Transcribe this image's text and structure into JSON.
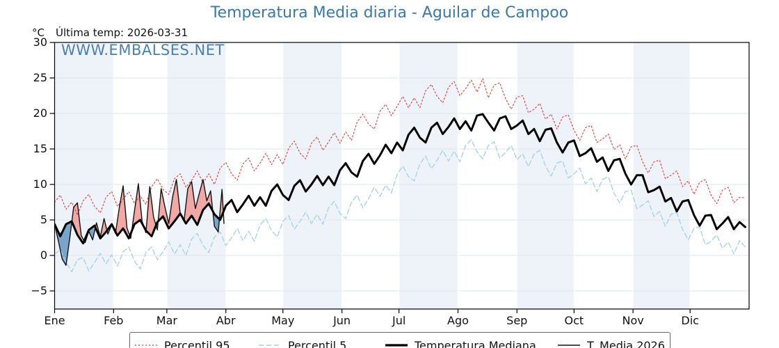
{
  "title": "Temperatura Media diaria - Aguilar de Campoo",
  "last_temp_label": "Última temp: 2026-03-31",
  "y_axis_unit": "°C",
  "watermark": "WWW.EMBALSES.NET",
  "colors": {
    "title_blue": "#3878ab",
    "band_blue": "#eef3f9",
    "hgrid": "#dfe5eb",
    "vgrid": "#ffffff",
    "axis": "#000000",
    "fill_above": "#f1a9a5",
    "fill_below": "#79a5cb"
  },
  "legend": {
    "items": [
      {
        "label": "Percentil 95",
        "series": 0
      },
      {
        "label": "Percentil 5",
        "series": 1
      },
      {
        "label": "Temperatura Mediana",
        "series": 2
      },
      {
        "label": "T. Media 2026",
        "series": 3
      }
    ],
    "item_offsets": [
      6,
      184,
      366,
      614
    ]
  },
  "chart_data": {
    "type": "line",
    "title": "Temperatura Media diaria - Aguilar de Campoo",
    "x_unit": "day_of_year",
    "x_range": [
      0,
      365
    ],
    "ylim": [
      -7.55,
      30
    ],
    "yticks": [
      30,
      25,
      20,
      15,
      10,
      5,
      0,
      -5
    ],
    "grid": true,
    "months": [
      {
        "label": "Ene",
        "day": 0
      },
      {
        "label": "Feb",
        "day": 31
      },
      {
        "label": "Mar",
        "day": 59
      },
      {
        "label": "Abr",
        "day": 90
      },
      {
        "label": "May",
        "day": 120
      },
      {
        "label": "Jun",
        "day": 151
      },
      {
        "label": "Jul",
        "day": 181
      },
      {
        "label": "Ago",
        "day": 212
      },
      {
        "label": "Sep",
        "day": 243
      },
      {
        "label": "Oct",
        "day": 273
      },
      {
        "label": "Nov",
        "day": 304
      },
      {
        "label": "Dic",
        "day": 334
      }
    ],
    "shaded_month_indices": [
      0,
      2,
      4,
      6,
      8,
      10
    ],
    "fills": {
      "between": [
        "T. Media 2026",
        "Temperatura Mediana"
      ],
      "above_color": "#f1a9a5",
      "below_color": "#79a5cb"
    },
    "series": [
      {
        "name": "Percentil 95",
        "color": "#e53935",
        "style": "dotted",
        "width": 1.1,
        "x_start": 0,
        "x_step": 3,
        "y": [
          7.5,
          8.5,
          6.5,
          7.5,
          5.7,
          7.7,
          8.6,
          6.9,
          6.0,
          8.2,
          9.0,
          6.9,
          7.9,
          9.0,
          7.3,
          8.4,
          7.2,
          9.7,
          10.8,
          9.3,
          8.6,
          10.8,
          11.5,
          9.6,
          10.6,
          11.9,
          10.2,
          11.5,
          10.0,
          12.3,
          13.1,
          11.5,
          10.6,
          12.9,
          13.7,
          11.9,
          13.0,
          14.4,
          12.8,
          14.2,
          12.8,
          15.1,
          16.1,
          14.4,
          13.6,
          15.8,
          16.7,
          14.8,
          16.0,
          17.3,
          15.8,
          17.4,
          16.2,
          18.8,
          19.9,
          18.5,
          17.8,
          20.3,
          21.3,
          19.7,
          21.0,
          22.4,
          20.8,
          22.2,
          20.8,
          23.2,
          24.1,
          22.4,
          21.5,
          23.7,
          24.5,
          22.5,
          23.5,
          24.7,
          23.0,
          24.9,
          22.2,
          24.0,
          24.3,
          22.1,
          20.6,
          22.3,
          22.5,
          20.1,
          20.6,
          21.4,
          19.2,
          19.9,
          17.8,
          19.5,
          19.8,
          17.6,
          16.2,
          18.0,
          18.3,
          15.9,
          16.4,
          17.1,
          14.9,
          15.6,
          13.6,
          15.3,
          15.5,
          13.2,
          11.6,
          13.2,
          13.4,
          10.8,
          11.3,
          11.9,
          9.7,
          10.5,
          8.6,
          10.3,
          10.7,
          8.5,
          7.3,
          9.2,
          9.6,
          7.4,
          8.2,
          8.1
        ]
      },
      {
        "name": "Percentil 5",
        "color": "#a8d2e4",
        "style": "dashed",
        "width": 1.4,
        "x_start": 0,
        "x_step": 3,
        "y": [
          0.2,
          0.8,
          -0.9,
          -2.3,
          -0.6,
          -0.3,
          -2.2,
          -1.0,
          0.3,
          -1.2,
          0.1,
          -1.5,
          0.5,
          1.2,
          -0.8,
          -1.9,
          0.4,
          1.2,
          -0.6,
          0.5,
          1.9,
          0.2,
          1.5,
          0.0,
          2.3,
          3.1,
          1.4,
          0.4,
          2.6,
          3.3,
          1.4,
          2.5,
          3.8,
          2.1,
          3.4,
          2.0,
          4.3,
          5.2,
          3.5,
          2.6,
          4.8,
          5.6,
          3.7,
          4.8,
          6.1,
          4.5,
          5.8,
          4.4,
          6.7,
          7.6,
          5.9,
          5.2,
          7.5,
          8.5,
          6.7,
          8.0,
          9.6,
          8.3,
          9.9,
          8.8,
          11.4,
          12.6,
          11.1,
          10.5,
          12.9,
          14.0,
          12.2,
          13.4,
          14.8,
          13.3,
          14.7,
          13.2,
          15.5,
          16.3,
          14.6,
          13.6,
          15.5,
          16.0,
          13.7,
          14.5,
          15.5,
          13.5,
          14.3,
          12.5,
          14.3,
          14.8,
          12.6,
          11.2,
          13.0,
          13.3,
          10.9,
          11.5,
          12.3,
          10.1,
          10.9,
          9.0,
          10.7,
          11.1,
          8.8,
          7.4,
          9.0,
          9.2,
          6.6,
          7.1,
          7.7,
          5.5,
          6.2,
          4.1,
          5.8,
          6.0,
          3.7,
          2.2,
          3.8,
          4.0,
          1.5,
          2.0,
          2.9,
          1.0,
          1.9,
          0.2,
          2.1,
          1.2
        ]
      },
      {
        "name": "Temperatura Mediana",
        "color": "#000000",
        "style": "solid",
        "width": 3,
        "x_start": 0,
        "x_step": 3,
        "y": [
          4.4,
          2.7,
          4.4,
          4.8,
          2.9,
          1.7,
          3.6,
          4.2,
          2.4,
          3.3,
          4.4,
          2.8,
          3.8,
          2.4,
          4.4,
          5.0,
          3.5,
          2.7,
          4.7,
          5.5,
          3.8,
          4.8,
          5.9,
          4.5,
          5.6,
          4.3,
          6.4,
          7.3,
          5.8,
          5.0,
          7.0,
          7.8,
          6.1,
          7.2,
          8.4,
          7.0,
          8.2,
          7.0,
          9.1,
          10.0,
          8.5,
          7.8,
          9.8,
          10.6,
          9.0,
          10.0,
          11.2,
          9.9,
          11.1,
          9.9,
          12.0,
          13.0,
          11.7,
          11.1,
          13.3,
          14.3,
          12.9,
          14.1,
          15.6,
          14.4,
          15.9,
          14.8,
          17.0,
          18.0,
          16.6,
          15.9,
          18.0,
          18.7,
          17.1,
          18.1,
          19.3,
          17.8,
          18.9,
          17.6,
          19.7,
          19.9,
          18.7,
          17.6,
          19.3,
          19.6,
          17.8,
          18.3,
          19.0,
          17.1,
          17.8,
          16.1,
          17.7,
          17.9,
          15.9,
          14.5,
          15.9,
          16.2,
          14.0,
          14.4,
          15.1,
          13.2,
          13.8,
          11.9,
          13.4,
          13.6,
          11.5,
          10.0,
          11.3,
          11.3,
          8.9,
          9.2,
          9.7,
          7.6,
          8.1,
          6.2,
          7.6,
          7.8,
          5.7,
          4.2,
          5.6,
          5.7,
          3.7,
          4.5,
          5.4,
          3.7,
          4.7,
          4.0
        ]
      },
      {
        "name": "T. Media 2026",
        "color": "#111111",
        "style": "solid",
        "width": 1.4,
        "x_start": 0,
        "x_step": 2,
        "y": [
          4.4,
          2.0,
          -0.5,
          -1.4,
          2.5,
          6.8,
          7.4,
          2.8,
          1.8,
          3.4,
          2.2,
          4.6,
          2.6,
          5.2,
          3.0,
          4.3,
          3.1,
          6.7,
          9.8,
          3.9,
          2.4,
          6.3,
          10.1,
          4.8,
          3.2,
          9.7,
          5.4,
          3.6,
          9.4,
          6.8,
          4.5,
          8.2,
          10.7,
          5.9,
          4.8,
          9.4,
          10.4,
          6.6,
          8.7,
          10.7,
          7.7,
          9.1,
          4.1,
          3.3,
          9.3
        ],
        "end_point": [
          89,
          4.5
        ]
      }
    ]
  }
}
